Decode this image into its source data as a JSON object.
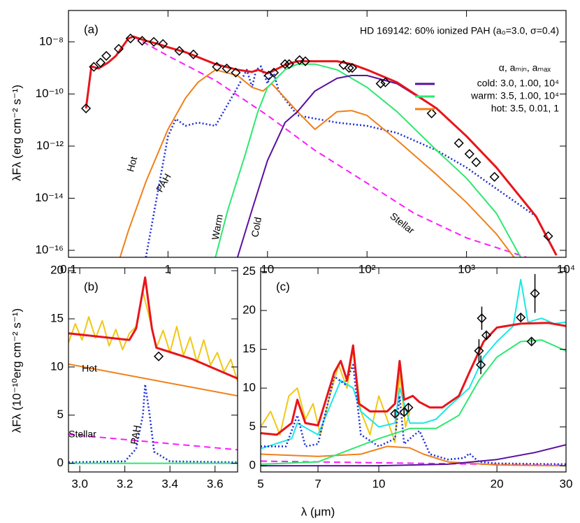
{
  "chart_data": [
    {
      "type": "line",
      "panel": "(a)",
      "title": "HD 169142: 60% ionized PAH (a₀=3.0, σ=0.4)",
      "ylabel": "λFλ (erg cm⁻² s⁻¹)",
      "xscale": "log",
      "yscale": "log",
      "xlim": [
        0.1,
        10000
      ],
      "ylim": [
        5.4e-17,
        1.6e-07
      ],
      "xticks": [
        0.1,
        1,
        10,
        {
          "value": 100,
          "label": "10²"
        },
        {
          "value": 1000,
          "label": "10³"
        },
        {
          "value": 10000,
          "label": "10⁴"
        }
      ],
      "yticks": [
        {
          "value": 1e-16,
          "label": "10⁻¹⁶"
        },
        {
          "value": 1e-14,
          "label": "10⁻¹⁴"
        },
        {
          "value": 1e-12,
          "label": "10⁻¹²"
        },
        {
          "value": 1e-10,
          "label": "10⁻¹⁰"
        },
        {
          "value": 1e-08,
          "label": "10⁻⁸"
        }
      ],
      "legend": {
        "title": "α,  aₘᵢₙ, aₘₐₓ",
        "entries": [
          {
            "label": "cold: 3.0, 1.00, 10⁴",
            "color": "#5a10a0"
          },
          {
            "label": "warm: 3.5, 1.00, 10⁴",
            "color": "#2ee870"
          },
          {
            "label": "hot: 3.5, 0.01, 1",
            "color": "#f08018"
          }
        ]
      },
      "series": [
        {
          "name": "Stellar",
          "color": "#ff1aff",
          "dash": "dashed",
          "x": [
            0.45,
            1,
            3,
            10,
            30,
            100,
            300,
            1000,
            4000
          ],
          "values": [
            1.6e-08,
            2.9e-09,
            3.3e-10,
            1.5e-11,
            6.9e-13,
            3.8e-14,
            2.6e-15,
            3e-16,
            5.4e-17
          ]
        },
        {
          "name": "PAH",
          "color": "#1f2fd8",
          "dash": "dotted",
          "x": [
            0.6,
            0.8,
            1,
            1.2,
            1.5,
            2,
            3,
            5,
            6.2,
            7,
            7.7,
            8.6,
            10,
            11.3,
            13,
            20,
            50,
            100,
            200,
            500,
            1000,
            2000,
            5000,
            8000
          ],
          "values": [
            5.4e-17,
            2.3e-14,
            2.4e-12,
            1.1e-11,
            6e-12,
            8e-12,
            6e-12,
            1.8e-10,
            8.5e-10,
            1.8e-10,
            8.5e-10,
            1.15e-09,
            2.5e-10,
            8.5e-10,
            1.3e-10,
            1.5e-11,
            8e-12,
            6e-12,
            3.2e-12,
            6.9e-13,
            1.5e-13,
            2.3e-14,
            2e-15,
            6.5e-17
          ]
        },
        {
          "name": "Hot",
          "color": "#f08018",
          "x": [
            0.33,
            0.4,
            0.6,
            1,
            1.5,
            2,
            3,
            5,
            7,
            9,
            11,
            15,
            20,
            30,
            50,
            70,
            100,
            200,
            500,
            1000,
            2000,
            3000
          ],
          "values": [
            5.4e-17,
            5.6e-16,
            4.3e-14,
            4.4e-12,
            7e-11,
            2.8e-10,
            8.5e-10,
            5.1e-10,
            1.8e-10,
            1.3e-10,
            2.5e-10,
            7e-11,
            2.1e-11,
            4.4e-12,
            2.1e-11,
            2.3e-11,
            1.5e-11,
            1.7e-12,
            8e-14,
            6.8e-15,
            4.2e-16,
            5.4e-17
          ]
        },
        {
          "name": "Warm",
          "color": "#2ee870",
          "x": [
            3,
            4,
            6,
            8,
            10,
            15,
            20,
            30,
            50,
            100,
            200,
            500,
            1000,
            2000,
            3500
          ],
          "values": [
            5.4e-17,
            3.6e-15,
            5e-13,
            2.1e-11,
            1.8e-10,
            8.5e-10,
            1.4e-09,
            1.4e-09,
            8.5e-10,
            1.8e-10,
            2.1e-11,
            6.9e-13,
            5.9e-14,
            2.6e-15,
            5.4e-17
          ]
        },
        {
          "name": "Cold",
          "color": "#5a10a0",
          "x": [
            5,
            7,
            10,
            15,
            20,
            30,
            50,
            70,
            100,
            200,
            500,
            1000,
            2000,
            5000,
            8000
          ],
          "values": [
            5.4e-17,
            3.6e-15,
            2.8e-13,
            8e-12,
            2.1e-11,
            1.3e-10,
            4e-10,
            5.1e-10,
            5.1e-10,
            2.5e-10,
            2.8e-11,
            2.4e-12,
            1.5e-13,
            2e-15,
            6.5e-17
          ]
        },
        {
          "color": "#e8141a",
          "x": [
            0.15,
            0.17,
            0.2,
            0.25,
            0.3,
            0.4,
            0.45,
            0.6,
            0.8,
            1,
            1.5,
            2,
            3,
            5,
            7,
            8,
            10,
            12,
            15,
            20,
            30,
            50,
            70,
            100,
            200,
            500,
            1000,
            2000,
            5000,
            8000
          ],
          "values": [
            2.8e-11,
            1.15e-09,
            9.5e-10,
            1.6e-09,
            2.9e-09,
            1.35e-08,
            1.6e-08,
            1.1e-08,
            8.3e-09,
            6.2e-09,
            4e-09,
            2.6e-09,
            1.4e-09,
            8.5e-10,
            7e-10,
            8.5e-10,
            6.2e-10,
            8.5e-10,
            1.3e-09,
            1.8e-09,
            1.8e-09,
            1.8e-09,
            1.4e-09,
            8.5e-10,
            2.8e-10,
            2.8e-11,
            2.4e-12,
            1.5e-13,
            2e-15,
            6.5e-17
          ]
        },
        {
          "color": "#000000",
          "marker": "diamond",
          "x": [
            0.15,
            0.18,
            0.21,
            0.24,
            0.32,
            0.42,
            0.55,
            0.72,
            0.89,
            1.3,
            1.8,
            3.1,
            3.9,
            4.8,
            10.3,
            11.6,
            15,
            16.5,
            21,
            24,
            58,
            66,
            71,
            137,
            153,
            446,
            838,
            1070,
            1250,
            1910,
            6620
          ],
          "values": [
            2.8e-11,
            1.1e-09,
            1.6e-09,
            2.9e-09,
            5.4e-09,
            1.35e-08,
            1.1e-08,
            1e-08,
            8.3e-09,
            4.5e-09,
            3.3e-09,
            1.1e-09,
            9.5e-10,
            6.6e-10,
            5.1e-10,
            6.6e-10,
            1.4e-09,
            1.4e-09,
            2e-09,
            1.8e-09,
            1.3e-09,
            1e-09,
            1e-09,
            2.5e-10,
            2.8e-10,
            1.8e-11,
            1.3e-12,
            5e-13,
            2.4e-13,
            6.6e-14,
            3.5e-16
          ]
        }
      ]
    },
    {
      "type": "line",
      "panel": "(b)",
      "ylabel": "λFλ (10⁻¹⁰erg cm⁻² s⁻¹)",
      "xscale": "linear",
      "yscale": "linear",
      "xlim": [
        2.95,
        3.7
      ],
      "ylim": [
        -0.9,
        20.3
      ],
      "xticks": [
        {
          "value": 3.0,
          "label": "3.0"
        },
        3.2,
        3.4,
        3.6
      ],
      "yticks": [
        0,
        5,
        10,
        15,
        20
      ],
      "series": [
        {
          "color": "#f0c814",
          "x": [
            2.95,
            2.98,
            3.01,
            3.04,
            3.07,
            3.1,
            3.13,
            3.16,
            3.19,
            3.22,
            3.25,
            3.28,
            3.31,
            3.34,
            3.37,
            3.4,
            3.43,
            3.46,
            3.49,
            3.52,
            3.55,
            3.58,
            3.61,
            3.64,
            3.67,
            3.7
          ],
          "values": [
            12.5,
            14.5,
            12.8,
            15.2,
            13,
            14.8,
            12.2,
            13.9,
            11.8,
            13.5,
            14.2,
            17.8,
            15,
            12,
            13.8,
            11.5,
            14.2,
            11.2,
            13.1,
            10.5,
            12.8,
            10.2,
            11.5,
            9.5,
            10.8,
            8.5
          ]
        },
        {
          "name": "Stellar",
          "color": "#ff1aff",
          "dash": "dashed",
          "x": [
            2.95,
            3.7
          ],
          "values": [
            3.0,
            1.4
          ]
        },
        {
          "name": "PAH",
          "color": "#1f2fd8",
          "dash": "dotted",
          "x": [
            2.95,
            3.2,
            3.25,
            3.28,
            3.29,
            3.31,
            3.33,
            3.4,
            3.7
          ],
          "values": [
            0.1,
            0.2,
            1.5,
            5,
            8.2,
            5,
            1.2,
            0.2,
            0.1
          ]
        },
        {
          "name": "Hot",
          "color": "#f08018",
          "x": [
            2.95,
            3.7
          ],
          "values": [
            10.3,
            7.0
          ]
        },
        {
          "color": "#2ee870",
          "x": [
            2.95,
            3.7
          ],
          "values": [
            0,
            0
          ]
        },
        {
          "color": "#e8141a",
          "x": [
            2.95,
            3.22,
            3.25,
            3.29,
            3.32,
            3.34,
            3.5,
            3.7
          ],
          "values": [
            13.5,
            12.8,
            14,
            19.3,
            14,
            12,
            10.8,
            8.8
          ]
        },
        {
          "color": "#000000",
          "marker": "diamond",
          "x": [
            3.35
          ],
          "values": [
            11.1
          ]
        }
      ]
    },
    {
      "type": "line",
      "panel": "(c)",
      "xlabel": "λ (μm)",
      "xscale": "log",
      "yscale": "linear",
      "xlim": [
        5,
        30
      ],
      "ylim": [
        -0.8,
        25.5
      ],
      "xticks": [
        5,
        7,
        10,
        20,
        30
      ],
      "yticks": [
        0,
        5,
        10,
        15,
        20,
        25
      ],
      "series": [
        {
          "color": "#f0c814",
          "x": [
            5,
            5.3,
            5.6,
            5.9,
            6.2,
            6.5,
            6.8,
            7.1,
            7.5,
            7.9,
            8.3,
            8.6,
            9,
            9.5,
            10,
            10.5,
            11,
            11.3,
            11.7,
            12
          ],
          "values": [
            5,
            7,
            4,
            9,
            10,
            6,
            8,
            4,
            9,
            13,
            10,
            15,
            7,
            4,
            9,
            6,
            3,
            12,
            5,
            7
          ]
        },
        {
          "color": "#1ae8e8",
          "x": [
            5,
            6,
            6.2,
            7,
            8,
            8.6,
            9,
            10,
            11,
            11.3,
            12,
            13,
            14,
            15,
            17,
            18.5,
            20,
            22,
            23,
            24,
            26,
            28,
            30
          ],
          "values": [
            2.2,
            3.5,
            5.5,
            4,
            11,
            10,
            7,
            5,
            5.5,
            10,
            5.5,
            5.5,
            6,
            7.5,
            10,
            14,
            16,
            18,
            24,
            18.5,
            19,
            18.3,
            18.5
          ]
        },
        {
          "color": "#ff1aff",
          "dash": "dashed",
          "x": [
            5,
            30
          ],
          "values": [
            0.6,
            0.05
          ]
        },
        {
          "color": "#1f2fd8",
          "dash": "dotted",
          "x": [
            5,
            5.8,
            6.2,
            6.5,
            7,
            7.7,
            8.2,
            8.6,
            9,
            10,
            11,
            11.3,
            11.6,
            12.2,
            12.7,
            13.5,
            15,
            16.5,
            17,
            18,
            20,
            30
          ],
          "values": [
            2.5,
            2.5,
            6.5,
            2.5,
            2.8,
            11.5,
            10.5,
            13,
            4,
            2.5,
            3.5,
            9,
            2.8,
            3.8,
            4.5,
            1.5,
            0.8,
            1,
            1.6,
            0.5,
            0.3,
            0.2
          ]
        },
        {
          "color": "#f08018",
          "x": [
            5,
            7,
            9,
            10.5,
            12,
            13,
            15,
            20,
            30
          ],
          "values": [
            1.5,
            1.2,
            1.5,
            2.5,
            2.3,
            1.5,
            0.5,
            0.1,
            0
          ]
        },
        {
          "color": "#5a10a0",
          "x": [
            5,
            10,
            15,
            20,
            25,
            30
          ],
          "values": [
            0,
            0,
            0.2,
            0.8,
            1.7,
            2.7
          ]
        },
        {
          "color": "#2ee870",
          "x": [
            5,
            7,
            10,
            12,
            14,
            16,
            18,
            20,
            23,
            26,
            30
          ],
          "values": [
            0.2,
            0.5,
            3.5,
            4.8,
            4.8,
            6.5,
            11,
            14,
            16,
            16.2,
            14.8
          ]
        },
        {
          "color": "#e8141a",
          "x": [
            5,
            5.5,
            6,
            6.2,
            6.5,
            7,
            7.7,
            8,
            8.3,
            8.6,
            8.9,
            9.5,
            10.5,
            11,
            11.3,
            11.6,
            12.2,
            12.7,
            13.5,
            14.5,
            16,
            17,
            18.5,
            20,
            23,
            27,
            30
          ],
          "values": [
            4.2,
            4,
            5.5,
            8.5,
            5.5,
            5.2,
            12,
            13.5,
            11,
            15.5,
            8,
            7,
            7,
            8,
            13.5,
            8.5,
            9,
            8.2,
            7.5,
            7.5,
            9,
            12,
            16,
            17.8,
            18.3,
            18.4,
            18
          ]
        },
        {
          "color": "#000000",
          "marker": "diamond",
          "x": [
            11,
            11.6,
            11.9,
            18,
            18.2,
            18.3,
            18.8,
            23,
            24.5,
            25
          ],
          "values": [
            6.7,
            6.9,
            7.5,
            14.8,
            13,
            19,
            16.8,
            19.1,
            16,
            22.2
          ],
          "errors": [
            0.4,
            0.4,
            0.5,
            1.5,
            1.2,
            1.5,
            0.6,
            0.4,
            0.4,
            2.5
          ]
        }
      ]
    }
  ]
}
